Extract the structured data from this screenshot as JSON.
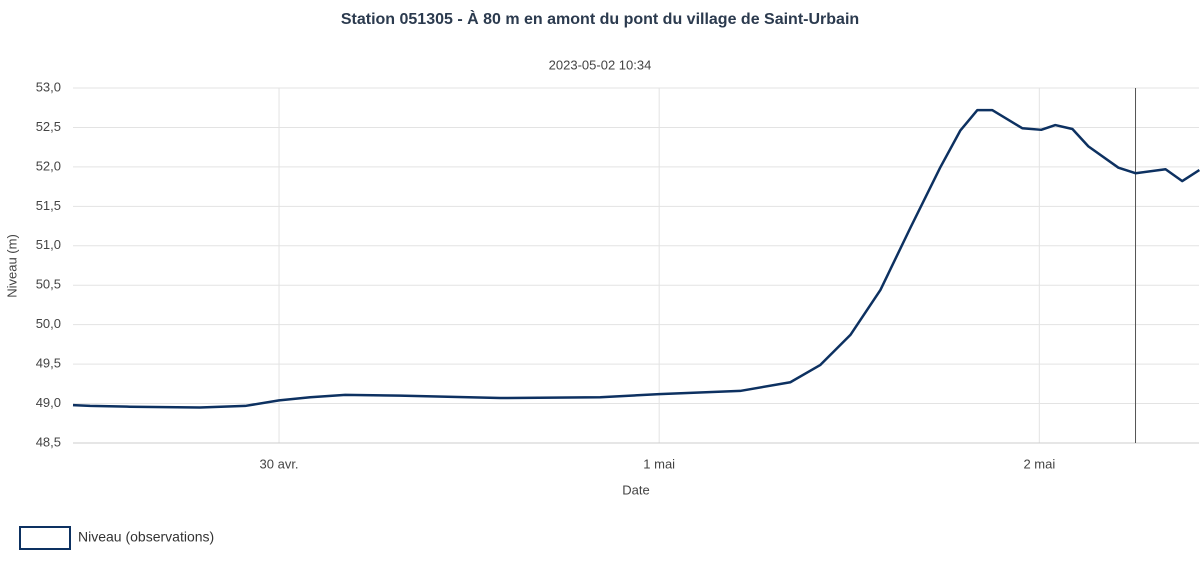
{
  "chart_data": {
    "type": "line",
    "title": "Station 051305 - À 80 m en amont du pont du village de Saint-Urbain",
    "subtitle": "2023-05-02 10:34",
    "x_label": "Date",
    "y_label": "Niveau (m)",
    "x": [
      29.458,
      29.503,
      29.608,
      29.792,
      29.911,
      30.0,
      30.082,
      30.174,
      30.318,
      30.582,
      30.845,
      31.0,
      31.213,
      31.345,
      31.424,
      31.503,
      31.582,
      31.661,
      31.739,
      31.792,
      31.837,
      31.876,
      31.955,
      32.005,
      32.042,
      32.087,
      32.129,
      32.208,
      32.253,
      32.332,
      32.376,
      32.421
    ],
    "series": [
      {
        "name": "Niveau (observations)",
        "color": "#0d3161",
        "values": [
          48.98,
          48.97,
          48.96,
          48.95,
          48.97,
          49.04,
          49.08,
          49.11,
          49.1,
          49.07,
          49.08,
          49.12,
          49.16,
          49.27,
          49.49,
          49.87,
          50.44,
          51.23,
          51.99,
          52.46,
          52.72,
          52.72,
          52.49,
          52.47,
          52.53,
          52.48,
          52.26,
          51.99,
          51.92,
          51.97,
          51.82,
          51.96
        ]
      }
    ],
    "xlim": [
      29.458,
      32.42
    ],
    "xticks": [
      {
        "value": 30,
        "label": "30 avr."
      },
      {
        "value": 31,
        "label": "1 mai"
      },
      {
        "value": 32,
        "label": "2 mai"
      }
    ],
    "ylim": [
      48.5,
      53
    ],
    "yticks": [
      {
        "value": 48.5,
        "label": "48,5"
      },
      {
        "value": 49,
        "label": "49,0"
      },
      {
        "value": 49.5,
        "label": "49,5"
      },
      {
        "value": 50,
        "label": "50,0"
      },
      {
        "value": 50.5,
        "label": "50,5"
      },
      {
        "value": 51,
        "label": "51,0"
      },
      {
        "value": 51.5,
        "label": "51,5"
      },
      {
        "value": 52,
        "label": "52,0"
      },
      {
        "value": 52.5,
        "label": "52,5"
      },
      {
        "value": 53,
        "label": "53,0"
      }
    ],
    "marker_x": 32.253,
    "grid": true
  }
}
